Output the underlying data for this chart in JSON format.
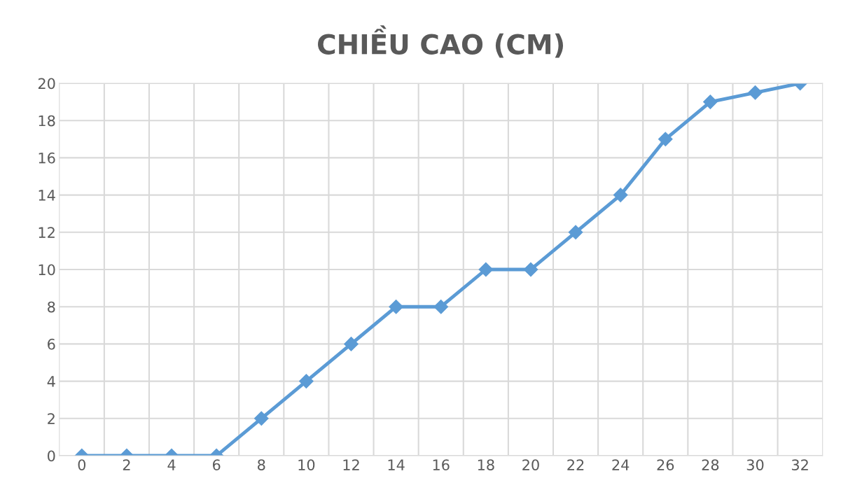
{
  "chart_data": {
    "type": "line",
    "title": "CHIỀU CAO (CM)",
    "categories": [
      "0",
      "2",
      "4",
      "6",
      "8",
      "10",
      "12",
      "14",
      "16",
      "18",
      "20",
      "22",
      "24",
      "26",
      "28",
      "30",
      "32"
    ],
    "series": [
      {
        "color": "#5b9bd5",
        "values": [
          0,
          0,
          0,
          0,
          2,
          4,
          6,
          8,
          8,
          10,
          10,
          12,
          14,
          17,
          19,
          19.5,
          20
        ]
      }
    ],
    "ylim": [
      0,
      20
    ],
    "yticks": [
      0,
      2,
      4,
      6,
      8,
      10,
      12,
      14,
      16,
      18,
      20
    ],
    "grid": true,
    "marker": "diamond",
    "line_style": "solid",
    "legend": false
  }
}
